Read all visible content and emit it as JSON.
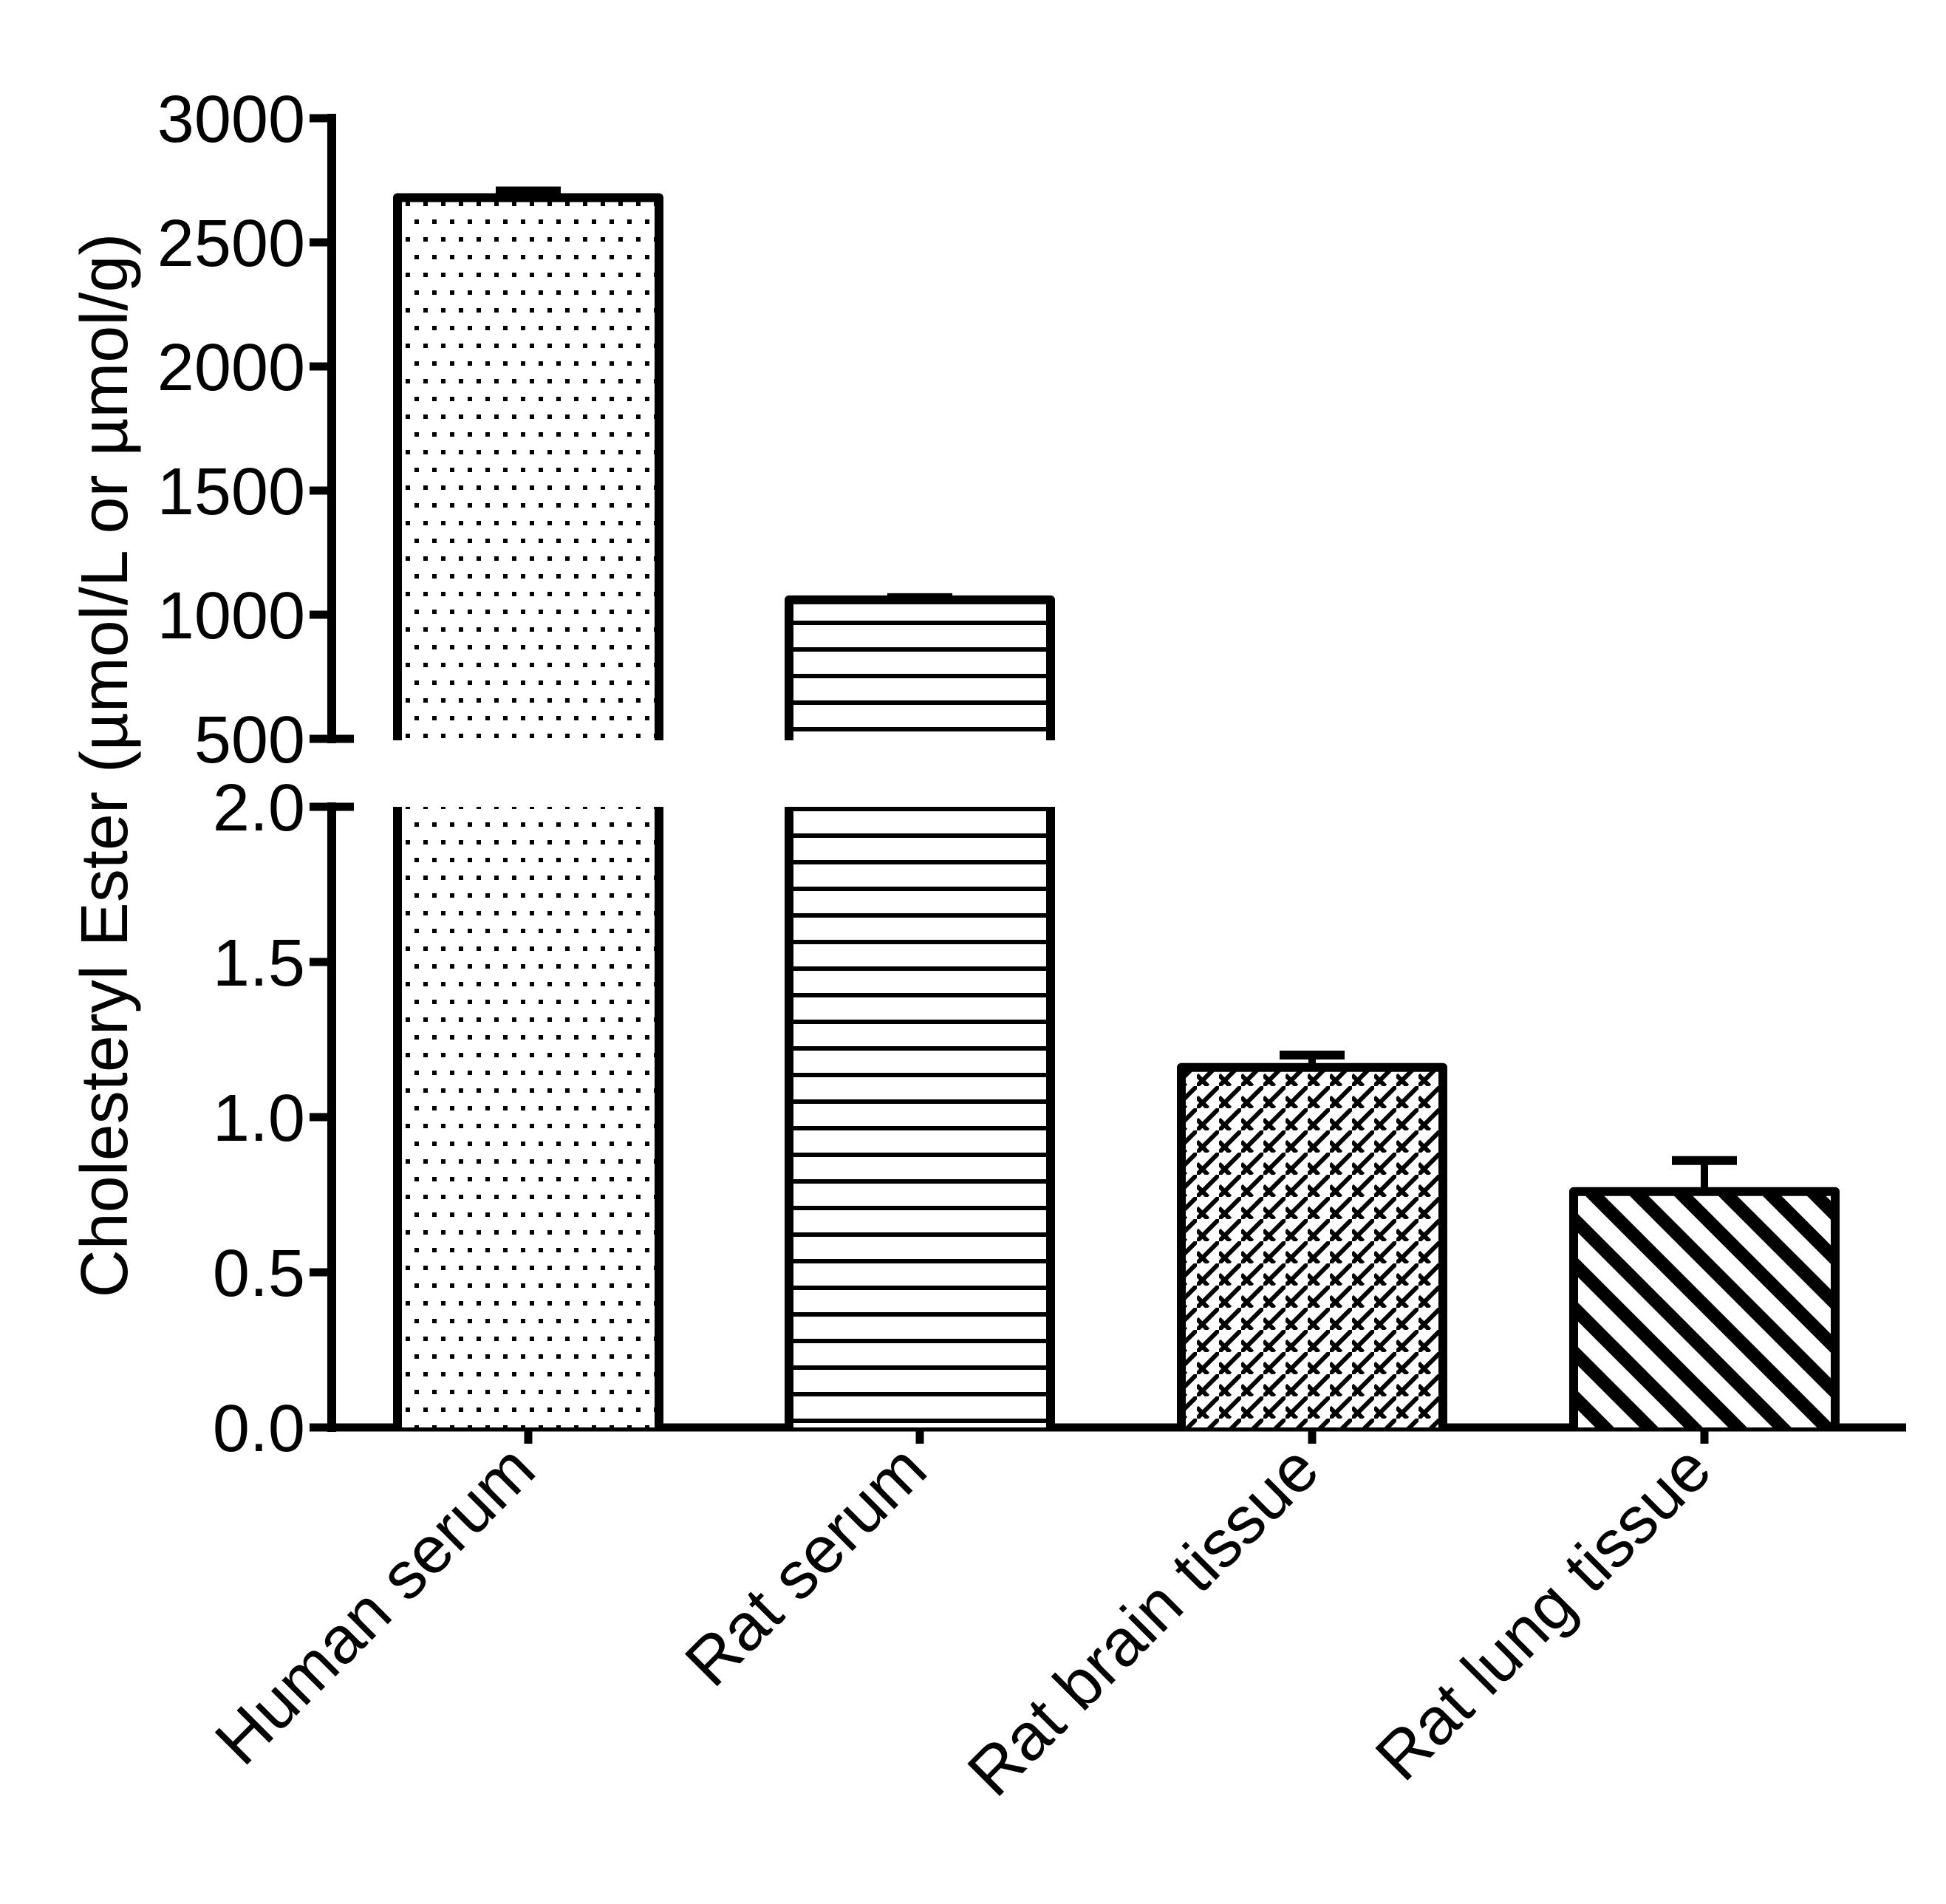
{
  "chart_data": {
    "type": "bar",
    "title": "",
    "xlabel": "",
    "ylabel": "Cholesteryl Ester (µmol/L or µmol/g)",
    "categories": [
      "Human serum",
      "Rat serum",
      "Rat brain tissue",
      "Rat lung tissue"
    ],
    "values": [
      2680,
      1060,
      1.16,
      0.76
    ],
    "errors": [
      30,
      5,
      0.04,
      0.1
    ],
    "units": [
      "µmol/L",
      "µmol/L",
      "µmol/g",
      "µmol/g"
    ],
    "patterns": [
      "dots",
      "horizontal-lines",
      "diagonal-brick",
      "thick-diagonal-stripes"
    ],
    "broken_axis": true,
    "y_segments": [
      {
        "name": "upper",
        "ylim": [
          500,
          3000
        ],
        "ticks": [
          500,
          1000,
          1500,
          2000,
          2500,
          3000
        ],
        "tick_labels": [
          "500",
          "1000",
          "1500",
          "2000",
          "2500",
          "3000"
        ]
      },
      {
        "name": "lower",
        "ylim": [
          0.0,
          2.0
        ],
        "ticks": [
          0.0,
          0.5,
          1.0,
          1.5,
          2.0
        ],
        "tick_labels": [
          "0.0",
          "0.5",
          "1.0",
          "1.5",
          "2.0"
        ]
      }
    ],
    "grid": false,
    "legend": null,
    "x_tick_label_rotation": -45,
    "colors": {
      "bar_edge": "#000000",
      "bar_fill": "#ffffff",
      "axis": "#000000"
    }
  }
}
